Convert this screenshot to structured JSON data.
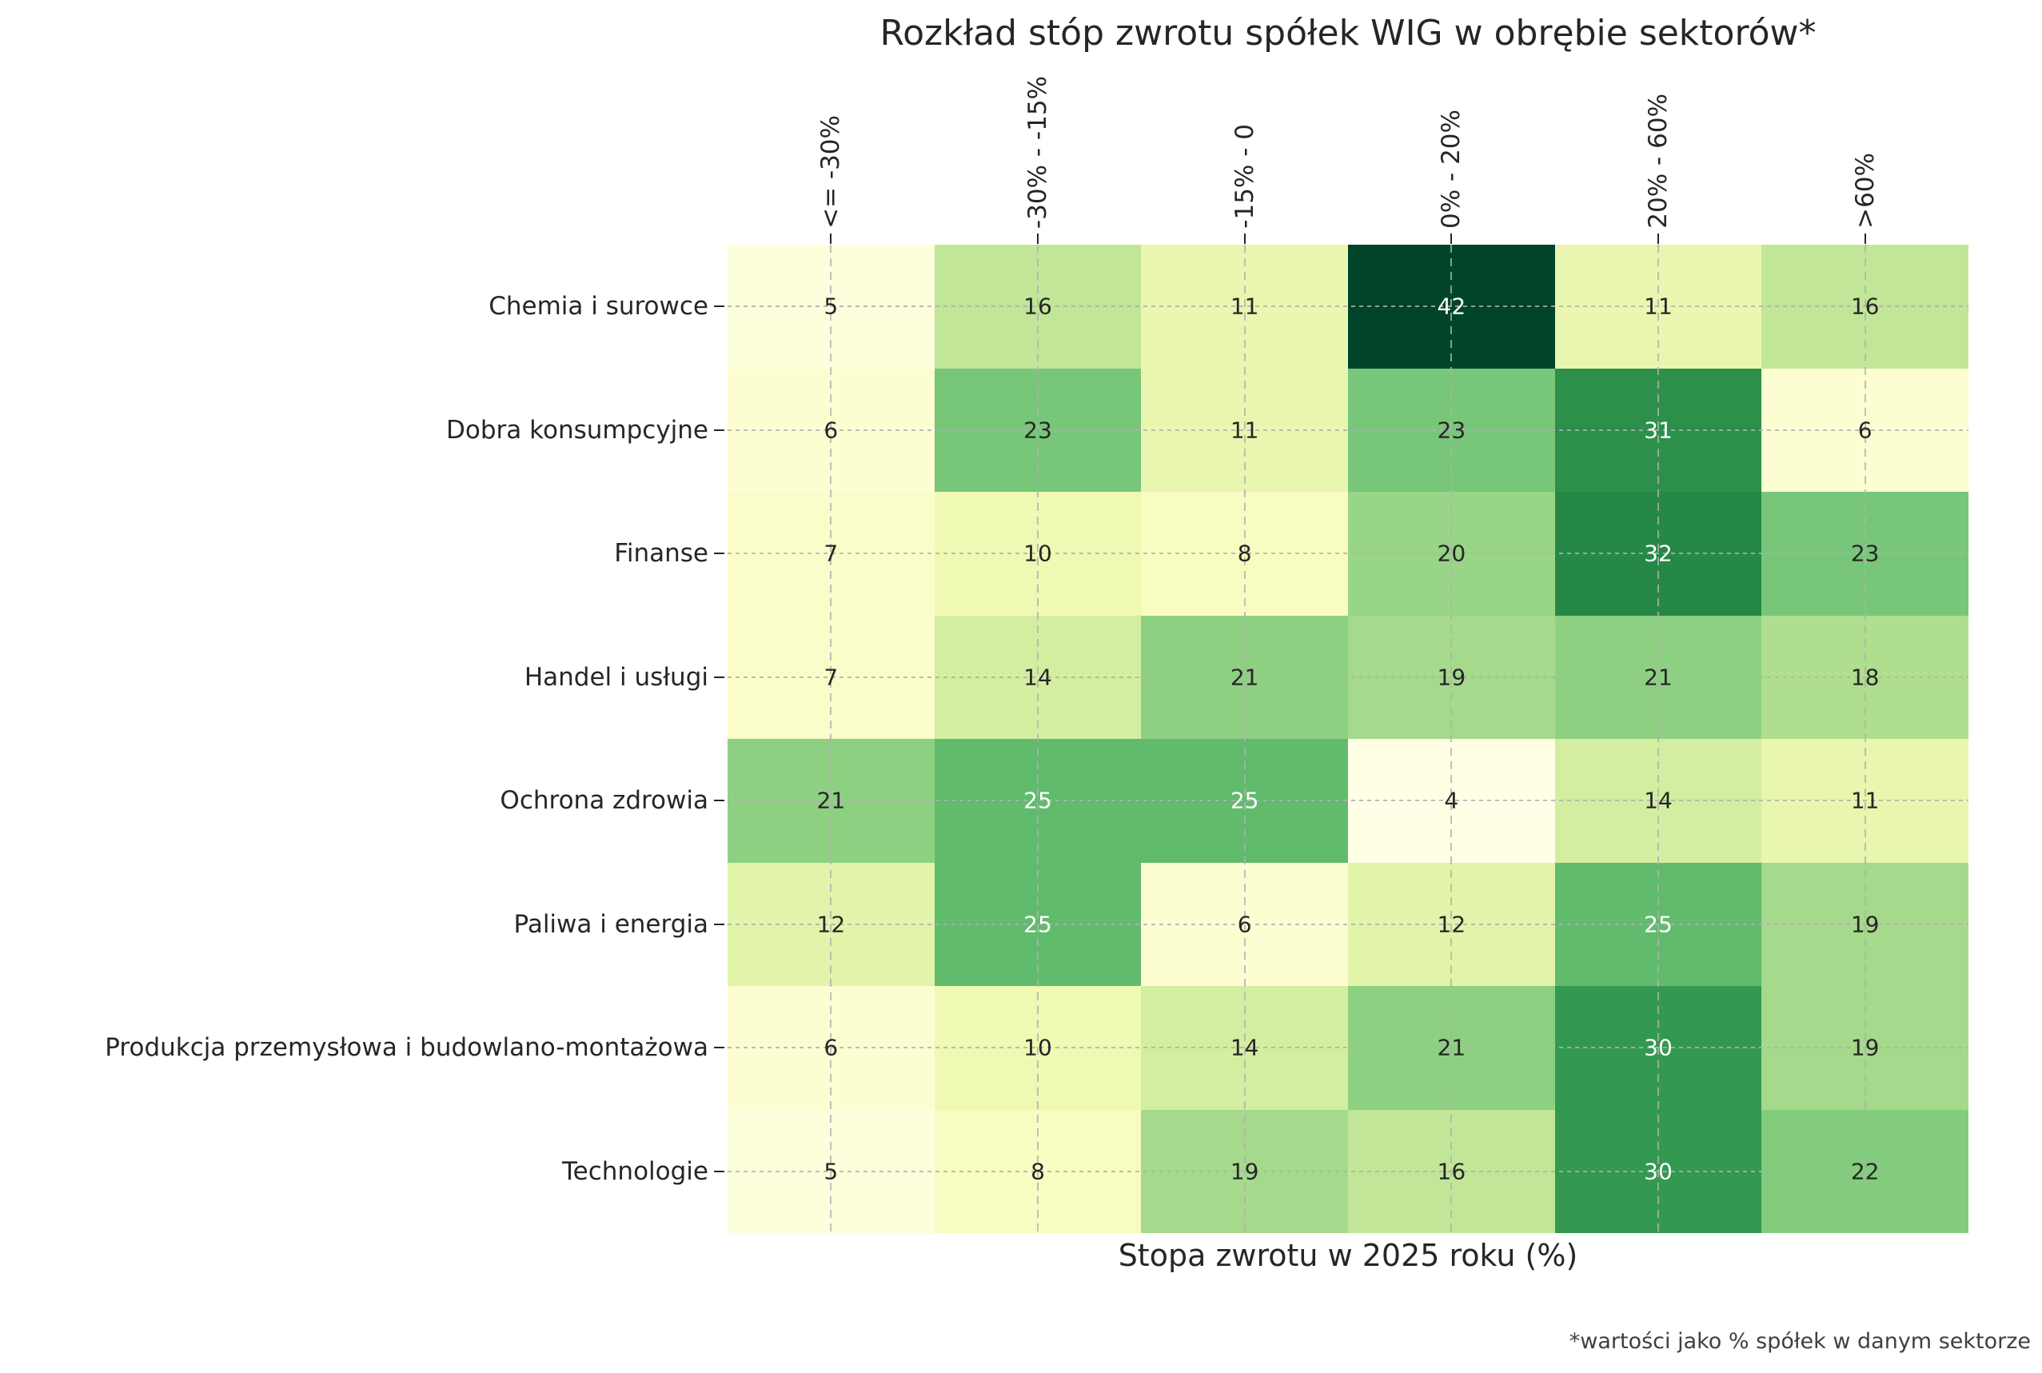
{
  "chart_data": {
    "type": "heatmap",
    "title": "Rozkład stóp zwrotu spółek WIG w obrębie sektorów*",
    "xlabel": "Stopa zwrotu w 2025 roku (%)",
    "footnote": "*wartości jako % spółek w danym sektorze",
    "columns": [
      "<= -30%",
      "-30% - -15%",
      "-15% - 0",
      "0% - 20%",
      "20% - 60%",
      ">60%"
    ],
    "rows": [
      "Chemia i surowce",
      "Dobra konsumpcyjne",
      "Finanse",
      "Handel i usługi",
      "Ochrona zdrowia",
      "Paliwa i energia",
      "Produkcja przemysłowa i budowlano-montażowa",
      "Technologie"
    ],
    "values": [
      [
        5,
        16,
        11,
        42,
        11,
        16
      ],
      [
        6,
        23,
        11,
        23,
        31,
        6
      ],
      [
        7,
        10,
        8,
        20,
        32,
        23
      ],
      [
        7,
        14,
        21,
        19,
        21,
        18
      ],
      [
        21,
        25,
        25,
        4,
        14,
        11
      ],
      [
        12,
        25,
        6,
        12,
        25,
        19
      ],
      [
        6,
        10,
        14,
        21,
        30,
        19
      ],
      [
        5,
        8,
        19,
        16,
        30,
        22
      ]
    ],
    "colormap": {
      "name": "YlGn",
      "vmin": 4,
      "vmax": 42,
      "stops": [
        "#ffffe5",
        "#f7fcb9",
        "#d9f0a3",
        "#addd8e",
        "#78c679",
        "#41ab5d",
        "#238443",
        "#006837",
        "#004529"
      ]
    },
    "annot_colors": {
      "dark": "#262626",
      "light": "#ffffff"
    },
    "grid": true,
    "legend_position": "none"
  }
}
